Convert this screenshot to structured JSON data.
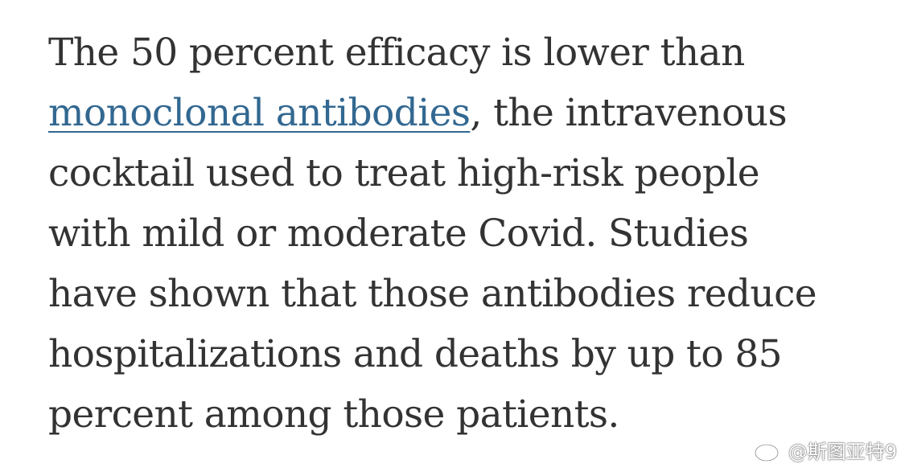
{
  "article": {
    "lines": {
      "l1": "The 50 percent efficacy is lower than",
      "l2_link": "monoclonal antibodies",
      "l2_rest": ", the intravenous",
      "l3": "cocktail used to treat high-risk people",
      "l4": "with mild or moderate Covid. Studies",
      "l5": "have shown that those antibodies reduce",
      "l6": "hospitalizations and deaths by up to 85",
      "l7": "percent among those patients."
    }
  },
  "watermark": {
    "text": "@斯图亚特9",
    "icon": "weibo-icon"
  }
}
